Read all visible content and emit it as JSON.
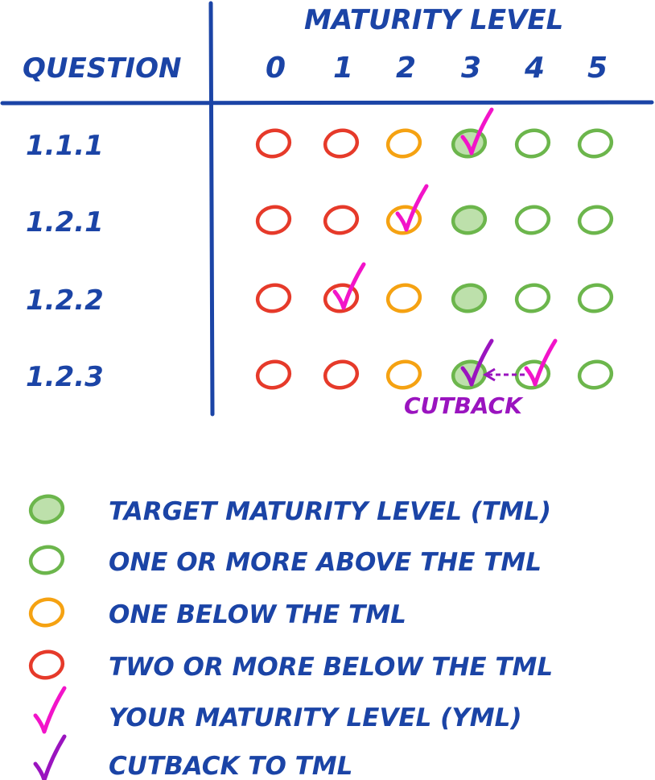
{
  "header": {
    "title": "MATURITY LEVEL",
    "question_label": "QUESTION",
    "levels": [
      "0",
      "1",
      "2",
      "3",
      "4",
      "5"
    ]
  },
  "colors": {
    "ink": "#1b44a6",
    "red": "#e63a2a",
    "orange": "#f5a212",
    "green": "#6cb64c",
    "target_fill": "#bde0ab",
    "yml": "#f214c9",
    "cutback": "#9a14bf"
  },
  "rows": [
    {
      "question": "1.1.1",
      "circles": [
        "red",
        "red",
        "orange",
        "target",
        "green",
        "green"
      ],
      "yml": 3
    },
    {
      "question": "1.2.1",
      "circles": [
        "red",
        "red",
        "orange",
        "target",
        "green",
        "green"
      ],
      "yml": 2
    },
    {
      "question": "1.2.2",
      "circles": [
        "red",
        "red",
        "orange",
        "target",
        "green",
        "green"
      ],
      "yml": 1
    },
    {
      "question": "1.2.3",
      "circles": [
        "red",
        "red",
        "orange",
        "target",
        "green",
        "green"
      ],
      "yml": 4,
      "cutback_to": 3,
      "cutback_label": "CUTBACK"
    }
  ],
  "legend": [
    {
      "icon": "target",
      "label": "TARGET MATURITY LEVEL (TML)"
    },
    {
      "icon": "green",
      "label": "ONE OR MORE ABOVE THE TML"
    },
    {
      "icon": "orange",
      "label": "ONE BELOW THE TML"
    },
    {
      "icon": "red",
      "label": "TWO OR MORE BELOW THE TML"
    },
    {
      "icon": "yml-check",
      "label": "YOUR MATURITY LEVEL (YML)"
    },
    {
      "icon": "cutback-check",
      "label": "CUTBACK TO TML"
    }
  ]
}
